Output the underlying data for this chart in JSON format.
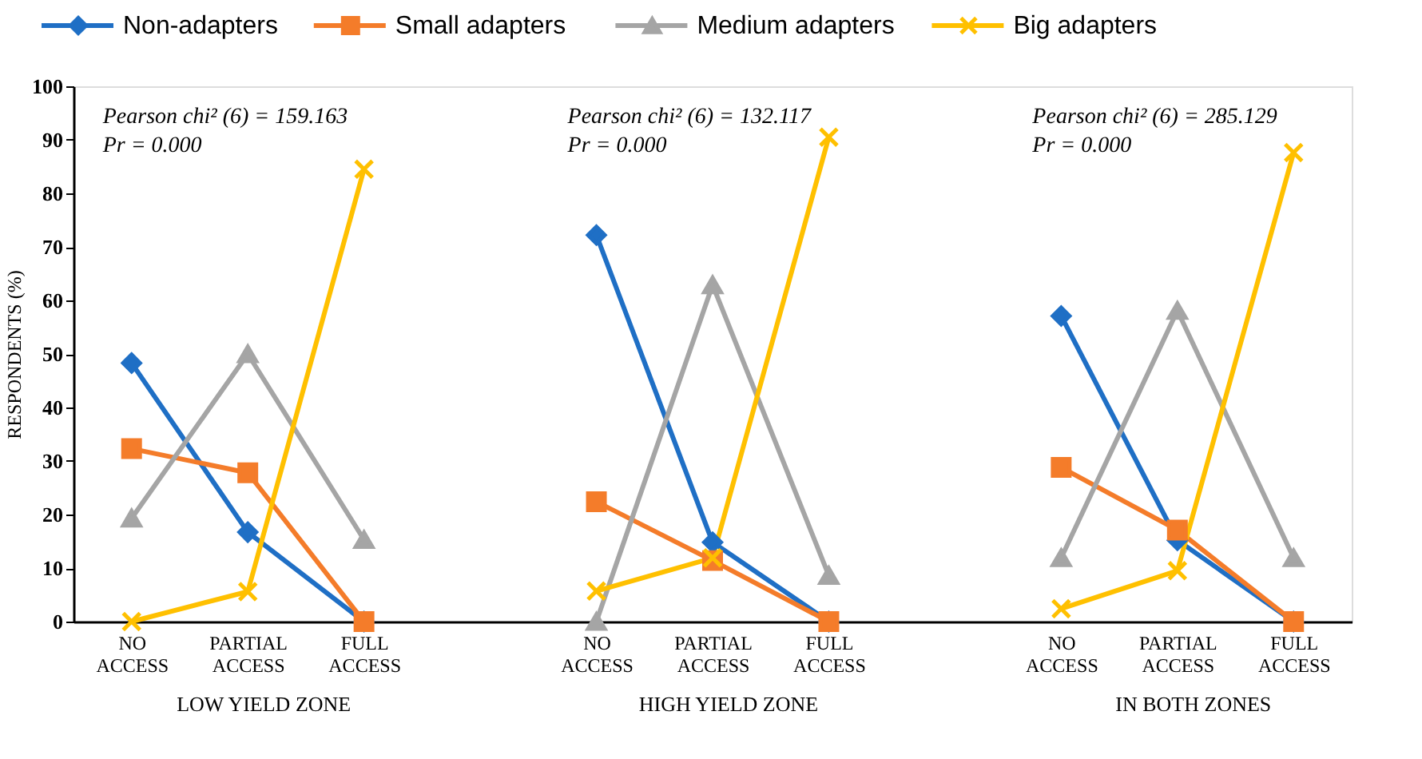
{
  "chart_data": {
    "type": "line",
    "ylabel": "RESPONDENTS (%)",
    "categories": [
      "NO ACCESS",
      "PARTIAL ACCESS",
      "FULL ACCESS",
      null,
      "NO ACCESS",
      "PARTIAL ACCESS",
      "FULL ACCESS",
      null,
      "NO ACCESS",
      "PARTIAL ACCESS",
      "FULL ACCESS"
    ],
    "series": [
      {
        "name": "Non-adapters",
        "color": "#1f6fc5",
        "marker": "diamond",
        "values": [
          48.3,
          16.7,
          0,
          null,
          72.2,
          14.8,
          0,
          null,
          57.1,
          15.2,
          0
        ]
      },
      {
        "name": "Small adapters",
        "color": "#f47c2a",
        "marker": "square",
        "values": [
          32.3,
          27.8,
          0,
          null,
          22.4,
          11.4,
          0,
          null,
          28.8,
          17.1,
          0
        ]
      },
      {
        "name": "Medium adapters",
        "color": "#a5a5a5",
        "marker": "triangle",
        "values": [
          19.3,
          50,
          15.3,
          null,
          0,
          62.9,
          8.6,
          null,
          11.9,
          58.1,
          11.9
        ]
      },
      {
        "name": "Big adapters",
        "color": "#ffc000",
        "marker": "cross",
        "values": [
          0,
          5.6,
          84.5,
          null,
          5.7,
          11.9,
          90.5,
          null,
          2.4,
          9.5,
          87.6
        ]
      }
    ],
    "ylim": [
      0,
      100
    ],
    "yticks": [
      0,
      10,
      20,
      30,
      40,
      50,
      60,
      70,
      80,
      90,
      100
    ],
    "legend": "top",
    "grid": false,
    "line_style": "solid",
    "annotations": [
      "Pearson chi² (6) = 159.163\nPr = 0.000",
      "Pearson chi² (6) = 132.117\nPr = 0.000",
      "Pearson chi² (6) = 285.129\nPr = 0.000",
      "LOW YIELD ZONE",
      "HIGH YIELD ZONE",
      "IN BOTH ZONES"
    ]
  }
}
